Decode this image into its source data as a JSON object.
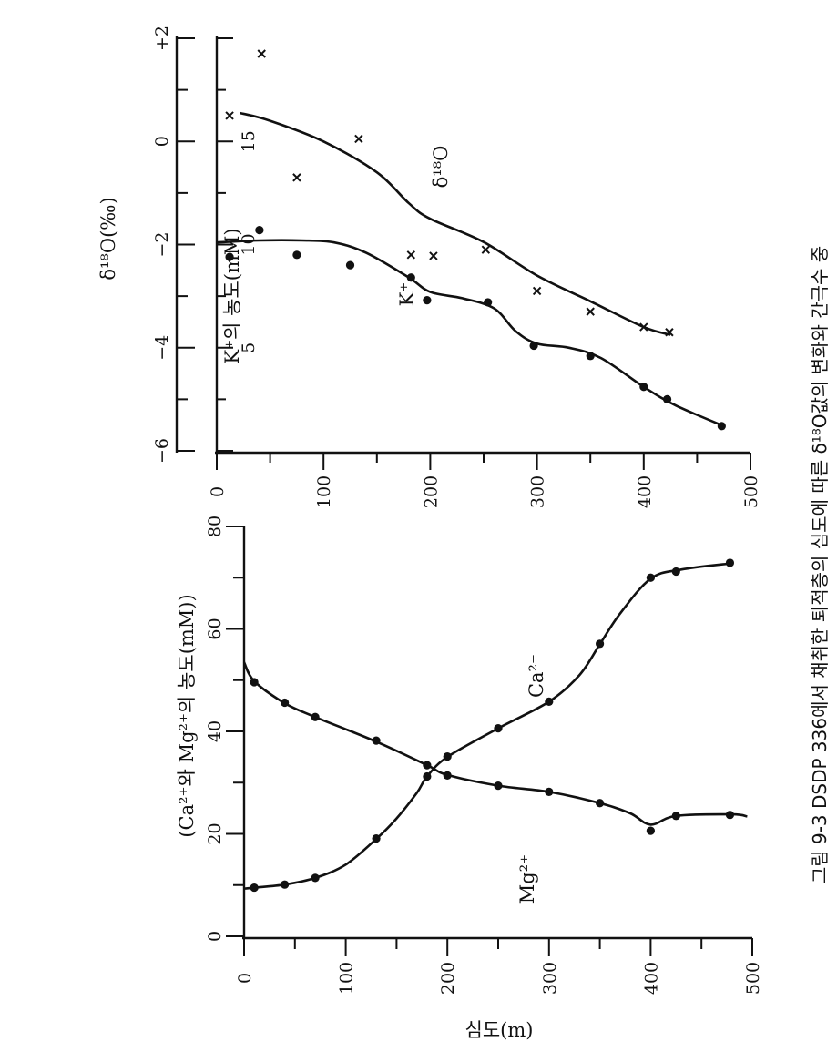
{
  "chart_data": [
    {
      "type": "line",
      "xlabel": "심도(m)",
      "ylabel": "(Ca²⁺와 Mg²⁺의 농도(mM))",
      "xlim": [
        0,
        500
      ],
      "ylim": [
        0,
        80
      ],
      "xticks": [
        "0",
        "100",
        "200",
        "300",
        "400",
        "500"
      ],
      "yticks": [
        "0",
        "20",
        "40",
        "60",
        "80"
      ],
      "grid": false,
      "series": [
        {
          "name": "Ca²⁺",
          "marker": "dot",
          "curve": [
            [
              0,
              9.3
            ],
            [
              10,
              9.5
            ],
            [
              40,
              10.1
            ],
            [
              70,
              11.4
            ],
            [
              100,
              14
            ],
            [
              130,
              19
            ],
            [
              150,
              23
            ],
            [
              170,
              28
            ],
            [
              180,
              31.2
            ],
            [
              200,
              35
            ],
            [
              250,
              40.6
            ],
            [
              300,
              45.8
            ],
            [
              330,
              51
            ],
            [
              350,
              57
            ],
            [
              370,
              63
            ],
            [
              400,
              69.8
            ],
            [
              430,
              71.6
            ],
            [
              480,
              72.8
            ]
          ],
          "points": {
            "x": [
              10,
              40,
              70,
              130,
              180,
              200,
              250,
              300,
              350,
              400,
              425,
              478
            ],
            "y": [
              9.5,
              10.1,
              11.4,
              19.1,
              31.2,
              35.1,
              40.6,
              45.8,
              57.1,
              70,
              71.2,
              72.9
            ]
          }
        },
        {
          "name": "Mg²⁺",
          "marker": "dot",
          "curve": [
            [
              0,
              53.5
            ],
            [
              10,
              49.8
            ],
            [
              40,
              45.5
            ],
            [
              70,
              42.8
            ],
            [
              130,
              38
            ],
            [
              180,
              33.4
            ],
            [
              200,
              31.5
            ],
            [
              250,
              29.4
            ],
            [
              300,
              28.2
            ],
            [
              350,
              26
            ],
            [
              380,
              24
            ],
            [
              400,
              21.8
            ],
            [
              425,
              23.5
            ],
            [
              480,
              23.8
            ],
            [
              495,
              23.4
            ]
          ],
          "points": {
            "x": [
              10,
              40,
              70,
              130,
              180,
              200,
              250,
              300,
              350,
              400,
              425,
              478
            ],
            "y": [
              49.6,
              45.6,
              42.8,
              38.2,
              33.4,
              31.4,
              29.4,
              28.2,
              26,
              20.6,
              23.5,
              23.7
            ]
          }
        }
      ]
    },
    {
      "type": "line",
      "xlim": [
        0,
        500
      ],
      "xticks": [
        "0",
        "100",
        "200",
        "300",
        "400",
        "500"
      ],
      "y1label": "K⁺의 농도(mM)",
      "y1lim": [
        0,
        20
      ],
      "y1ticks": [
        "5",
        "10",
        "15"
      ],
      "y2label": "δ¹⁸O(‰)",
      "y2lim": [
        -6,
        2
      ],
      "y2ticks": [
        "-6",
        "-4",
        "-2",
        "0",
        "+2"
      ],
      "grid": false,
      "series": [
        {
          "name": "K⁺",
          "axis": "y1",
          "marker": "dot",
          "curve": [
            [
              0,
              10.1
            ],
            [
              40,
              10.2
            ],
            [
              80,
              10.2
            ],
            [
              110,
              10.1
            ],
            [
              140,
              9.6
            ],
            [
              180,
              8.4
            ],
            [
              200,
              7.7
            ],
            [
              230,
              7.4
            ],
            [
              260,
              6.9
            ],
            [
              280,
              5.8
            ],
            [
              300,
              5.2
            ],
            [
              330,
              5
            ],
            [
              360,
              4.5
            ],
            [
              400,
              3.1
            ],
            [
              430,
              2.2
            ],
            [
              475,
              1.2
            ]
          ],
          "points": {
            "x": [
              12,
              40,
              75,
              125,
              182,
              197,
              254,
              297,
              350,
              400,
              422,
              473
            ],
            "y": [
              9.4,
              10.7,
              9.5,
              9,
              8.4,
              7.3,
              7.2,
              5.1,
              4.6,
              3.1,
              2.5,
              1.2
            ]
          }
        },
        {
          "name": "δ¹⁸O",
          "axis": "y2",
          "marker": "x",
          "curve": [
            [
              22,
              0.55
            ],
            [
              50,
              0.4
            ],
            [
              100,
              0
            ],
            [
              150,
              -0.6
            ],
            [
              180,
              -1.2
            ],
            [
              200,
              -1.5
            ],
            [
              250,
              -1.95
            ],
            [
              300,
              -2.6
            ],
            [
              350,
              -3.1
            ],
            [
              400,
              -3.6
            ],
            [
              425,
              -3.75
            ]
          ],
          "points": {
            "x": [
              12,
              42,
              75,
              133,
              182,
              203,
              252,
              300,
              350,
              400,
              424
            ],
            "y": [
              0.5,
              1.7,
              -0.7,
              0.05,
              -2.2,
              -2.22,
              -2.1,
              -2.9,
              -3.3,
              -3.6,
              -3.7
            ]
          }
        }
      ]
    }
  ],
  "caption": "그림 9-3  DSDP 336에서 채취한 퇴적층의 심도에 따른 δ¹⁸O값의 변화와 간극수 중"
}
